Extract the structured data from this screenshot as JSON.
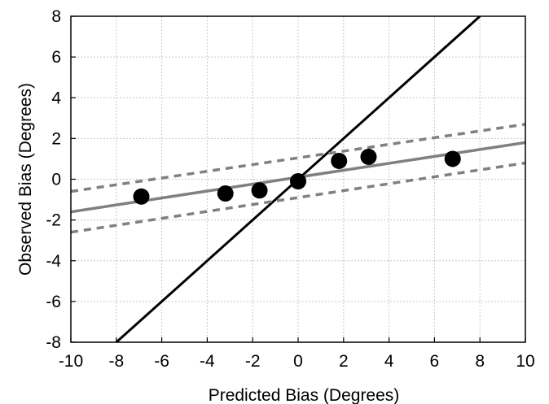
{
  "chart_data": {
    "type": "scatter",
    "title": "",
    "xlabel": "Predicted Bias (Degrees)",
    "ylabel": "Observed Bias (Degrees)",
    "xlim": [
      -10,
      10
    ],
    "ylim": [
      -8,
      8
    ],
    "xticks": [
      -10,
      -8,
      -6,
      -4,
      -2,
      0,
      2,
      4,
      6,
      8,
      10
    ],
    "yticks": [
      -8,
      -6,
      -4,
      -2,
      0,
      2,
      4,
      6,
      8
    ],
    "grid": true,
    "legend": "none",
    "points": [
      {
        "x": -6.9,
        "y": -0.85
      },
      {
        "x": -3.2,
        "y": -0.7
      },
      {
        "x": -1.7,
        "y": -0.55
      },
      {
        "x": 0.0,
        "y": -0.1
      },
      {
        "x": 1.8,
        "y": 0.9
      },
      {
        "x": 3.1,
        "y": 1.1
      },
      {
        "x": 6.8,
        "y": 1.0
      }
    ],
    "lines": [
      {
        "role": "identity",
        "style": "solid",
        "color": "#000000",
        "x": [
          -8,
          8
        ],
        "y": [
          -8,
          8
        ]
      },
      {
        "role": "regression",
        "style": "solid",
        "color": "#808080",
        "x": [
          -10,
          10
        ],
        "y": [
          -1.6,
          1.8
        ]
      },
      {
        "role": "upper-ci",
        "style": "dashed",
        "color": "#808080",
        "x": [
          -10,
          10
        ],
        "y": [
          -0.6,
          2.7
        ]
      },
      {
        "role": "lower-ci",
        "style": "dashed",
        "color": "#808080",
        "x": [
          -10,
          10
        ],
        "y": [
          -2.6,
          0.8
        ]
      }
    ]
  },
  "colors": {
    "points": "#000000",
    "grid": "#c8c8c8",
    "frame": "#000000"
  }
}
